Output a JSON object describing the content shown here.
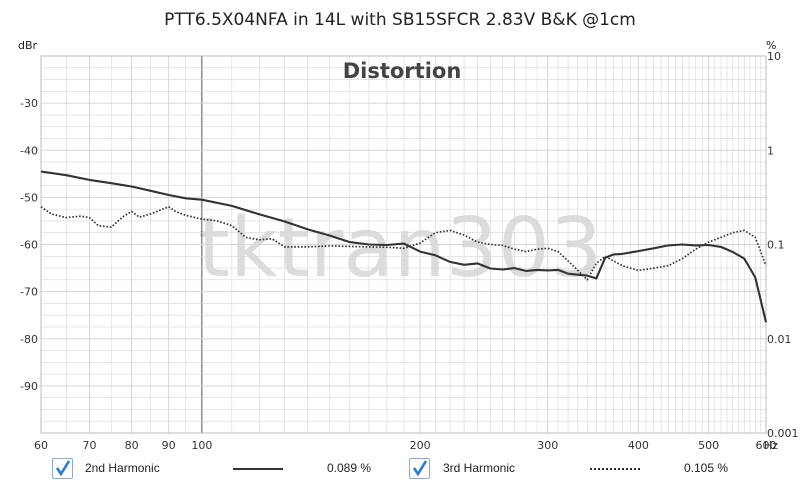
{
  "chart_data": {
    "type": "line",
    "title": "PTT6.5X04NFA in 14L with SB15SFCR 2.83V B&K @1cm",
    "heading": "Distortion",
    "watermark": "tktran303",
    "x_scale": "log",
    "xlim": [
      60,
      600
    ],
    "x_ticks": [
      60,
      70,
      80,
      90,
      100,
      200,
      300,
      400,
      500,
      600
    ],
    "x_tick_labels": [
      "60",
      "70",
      "80",
      "90",
      "100",
      "200",
      "300",
      "400",
      "500",
      "600"
    ],
    "x_unit": "Hz",
    "left_axis": {
      "unit": "dBr",
      "ylim": [
        -100,
        -20
      ],
      "ticks": [
        -30,
        -40,
        -50,
        -60,
        -70,
        -80,
        -90
      ],
      "tick_labels": [
        "-30",
        "-40",
        "-50",
        "-60",
        "-70",
        "-80",
        "-90"
      ]
    },
    "right_axis": {
      "unit": "%",
      "scale": "log",
      "ticks": [
        10,
        1,
        0.1,
        0.01,
        0.001
      ],
      "tick_labels": [
        "10",
        "1",
        "0.1",
        "0.01",
        "0.001"
      ]
    },
    "grid": true,
    "series": [
      {
        "name": "2nd Harmonic",
        "style": "solid",
        "color": "#333333",
        "summary_value": "0.089 %",
        "checked": true,
        "x": [
          60,
          65,
          70,
          75,
          80,
          85,
          90,
          95,
          100,
          110,
          120,
          130,
          140,
          150,
          160,
          170,
          180,
          190,
          200,
          210,
          220,
          230,
          240,
          250,
          260,
          270,
          280,
          290,
          300,
          310,
          320,
          330,
          340,
          350,
          360,
          370,
          380,
          400,
          420,
          440,
          460,
          480,
          500,
          520,
          540,
          560,
          580,
          590,
          600
        ],
        "y": [
          -44.5,
          -45.3,
          -46.3,
          -47.0,
          -47.7,
          -48.6,
          -49.5,
          -50.2,
          -50.5,
          -51.8,
          -53.6,
          -55.1,
          -56.8,
          -58.1,
          -59.5,
          -60.0,
          -60.1,
          -59.8,
          -61.5,
          -62.3,
          -63.7,
          -64.3,
          -64.0,
          -65.1,
          -65.3,
          -65.0,
          -65.6,
          -65.4,
          -65.5,
          -65.4,
          -66.2,
          -66.4,
          -66.6,
          -67.2,
          -62.8,
          -62.1,
          -62.0,
          -61.4,
          -60.8,
          -60.2,
          -60.0,
          -60.2,
          -60.1,
          -60.5,
          -61.6,
          -63.0,
          -67.0,
          -71.8,
          -76.5
        ]
      },
      {
        "name": "3rd Harmonic",
        "style": "dotted",
        "color": "#333333",
        "summary_value": "0.105 %",
        "checked": true,
        "x": [
          60,
          62,
          65,
          68,
          70,
          72,
          75,
          78,
          80,
          82,
          85,
          88,
          90,
          92,
          95,
          100,
          105,
          110,
          115,
          120,
          125,
          130,
          140,
          150,
          160,
          170,
          180,
          190,
          200,
          210,
          220,
          230,
          240,
          250,
          260,
          270,
          280,
          290,
          300,
          310,
          320,
          330,
          340,
          350,
          360,
          380,
          400,
          420,
          440,
          460,
          480,
          500,
          520,
          540,
          560,
          580,
          600
        ],
        "y": [
          -52.0,
          -53.5,
          -54.3,
          -54.0,
          -54.3,
          -56.0,
          -56.3,
          -54.0,
          -53.0,
          -54.2,
          -53.5,
          -52.6,
          -52.0,
          -53.0,
          -53.8,
          -54.6,
          -55.0,
          -56.0,
          -58.5,
          -59.0,
          -58.8,
          -60.5,
          -60.5,
          -60.3,
          -60.4,
          -60.5,
          -60.6,
          -60.8,
          -59.7,
          -57.5,
          -57.0,
          -58.0,
          -59.5,
          -60.0,
          -60.2,
          -61.0,
          -61.5,
          -61.0,
          -60.8,
          -61.5,
          -63.5,
          -65.5,
          -67.5,
          -64.0,
          -62.5,
          -64.5,
          -65.5,
          -65.0,
          -64.5,
          -63.0,
          -61.0,
          -59.5,
          -58.5,
          -57.5,
          -57.0,
          -58.5,
          -64.5
        ]
      }
    ]
  },
  "legend": {
    "items": [
      {
        "label": "2nd Harmonic",
        "value": "0.089 %"
      },
      {
        "label": "3rd Harmonic",
        "value": "0.105 %"
      }
    ]
  },
  "colors": {
    "grid": "#d6d6d6",
    "frame": "#bdbdbd",
    "marker_line": "#555555",
    "checkbox_accent": "#2a7bd4"
  }
}
